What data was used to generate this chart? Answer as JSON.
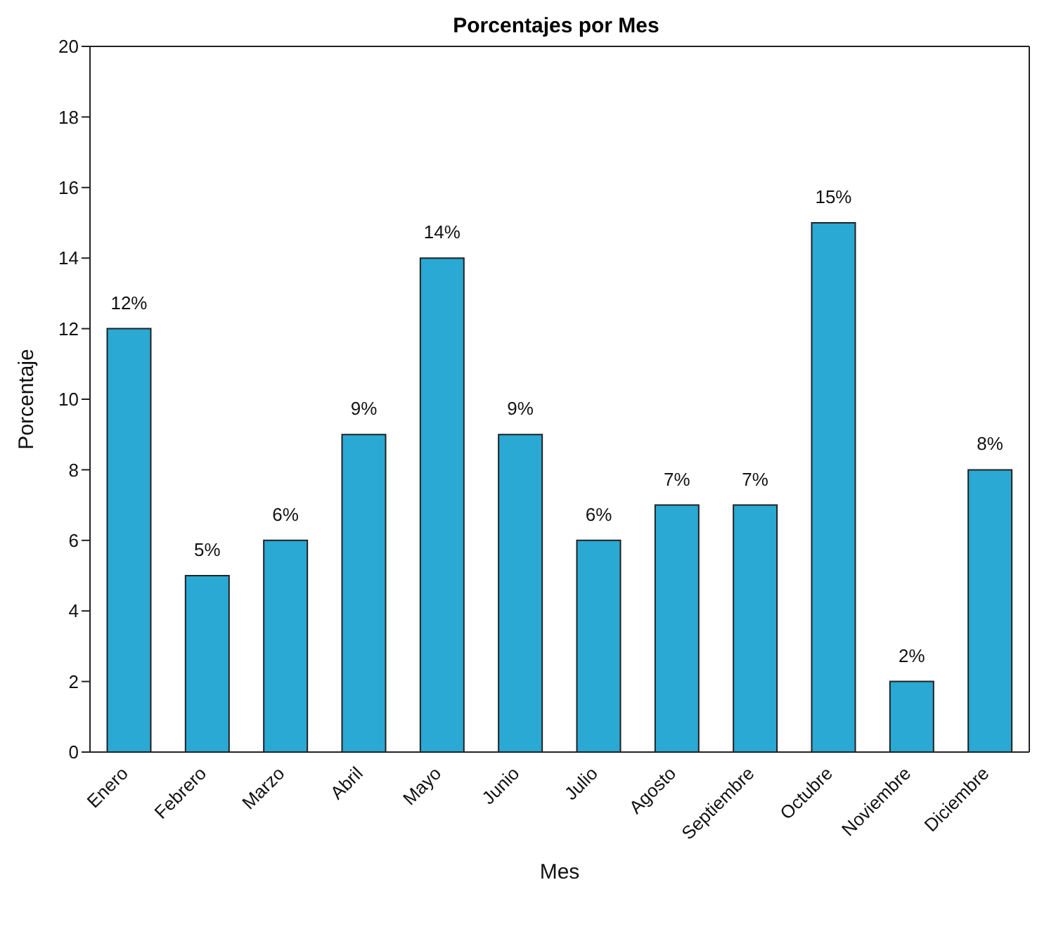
{
  "chart_data": {
    "type": "bar",
    "title": "Porcentajes por Mes",
    "xlabel": "Mes",
    "ylabel": "Porcentaje",
    "categories": [
      "Enero",
      "Febrero",
      "Marzo",
      "Abril",
      "Mayo",
      "Junio",
      "Julio",
      "Agosto",
      "Septiembre",
      "Octubre",
      "Noviembre",
      "Diciembre"
    ],
    "values": [
      12,
      5,
      6,
      9,
      14,
      9,
      6,
      7,
      7,
      15,
      2,
      8
    ],
    "value_labels": [
      "12%",
      "5%",
      "6%",
      "9%",
      "14%",
      "9%",
      "6%",
      "7%",
      "7%",
      "15%",
      "2%",
      "8%"
    ],
    "color": "#29a9d3",
    "ylim": [
      0,
      20
    ],
    "yticks": [
      0,
      2,
      4,
      6,
      8,
      10,
      12,
      14,
      16,
      18,
      20
    ],
    "grid": false,
    "legend": false
  }
}
